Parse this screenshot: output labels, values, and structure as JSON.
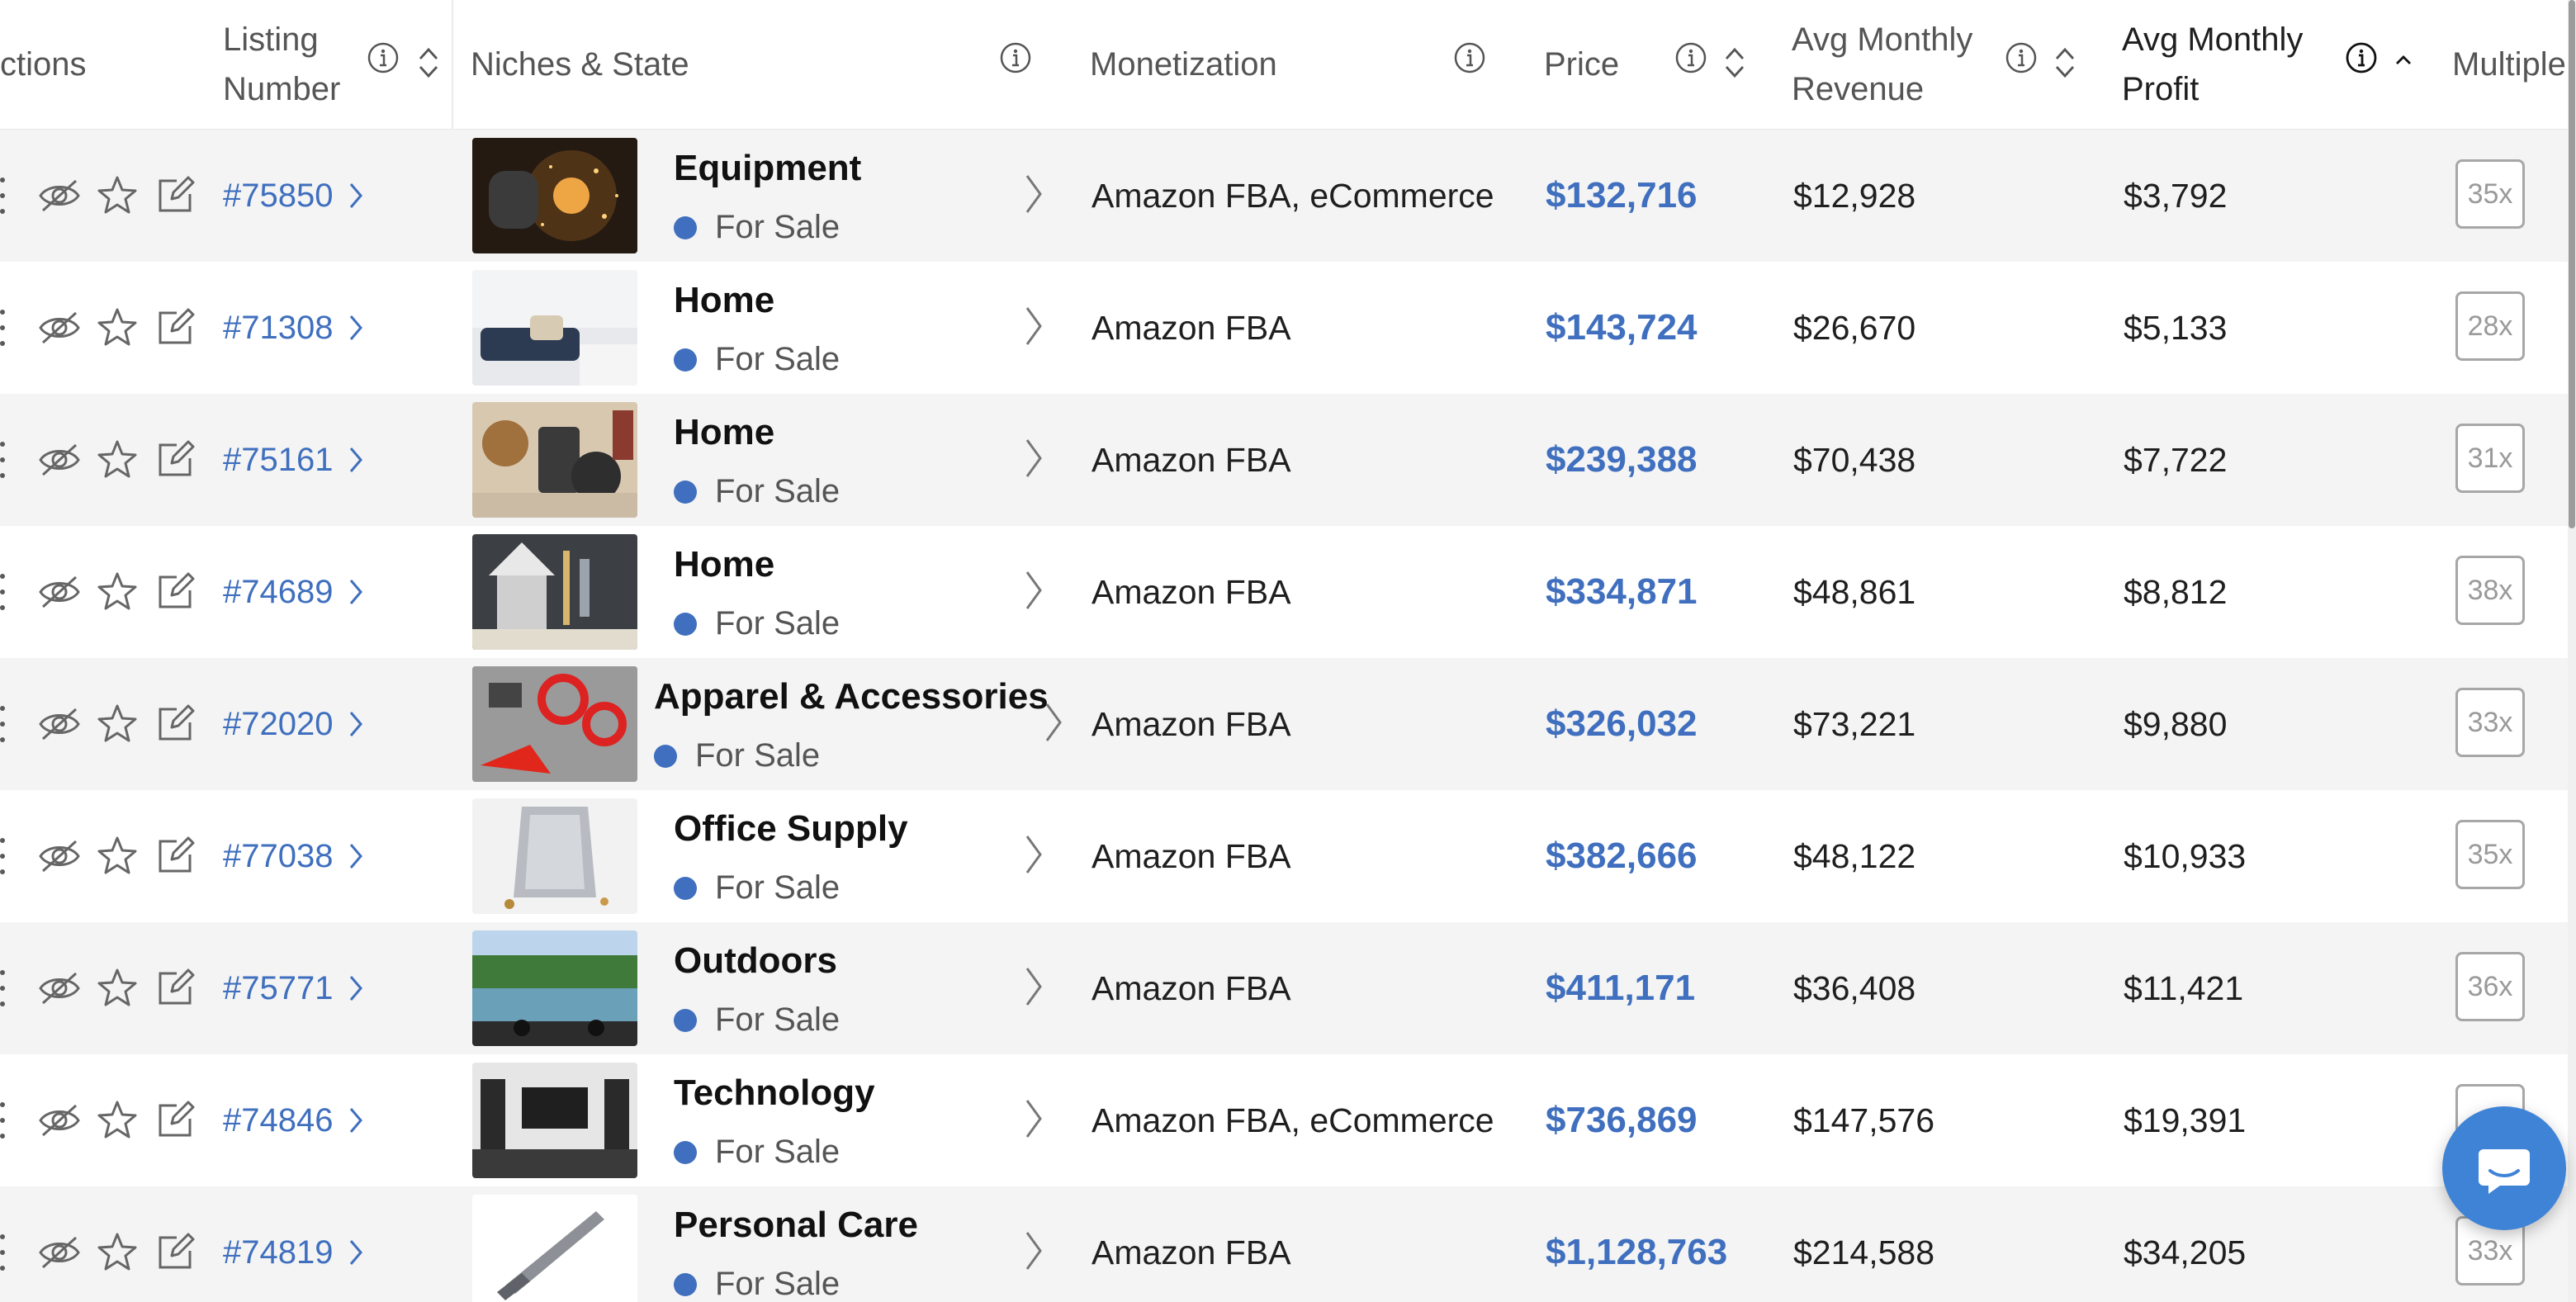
{
  "header": {
    "actions": "ctions",
    "listing_number": "Listing\nNumber",
    "niches_state": "Niches & State",
    "monetization": "Monetization",
    "price": "Price",
    "avg_monthly_revenue": "Avg Monthly\nRevenue",
    "avg_monthly_profit": "Avg Monthly\nProfit",
    "multiple": "Multiple"
  },
  "rows": [
    {
      "listing": "#75850",
      "niche": "Equipment",
      "state": "For Sale",
      "monetization": "Amazon FBA, eCommerce",
      "price": "$132,716",
      "revenue": "$12,928",
      "profit": "$3,792",
      "multiple": "35x"
    },
    {
      "listing": "#71308",
      "niche": "Home",
      "state": "For Sale",
      "monetization": "Amazon FBA",
      "price": "$143,724",
      "revenue": "$26,670",
      "profit": "$5,133",
      "multiple": "28x"
    },
    {
      "listing": "#75161",
      "niche": "Home",
      "state": "For Sale",
      "monetization": "Amazon FBA",
      "price": "$239,388",
      "revenue": "$70,438",
      "profit": "$7,722",
      "multiple": "31x"
    },
    {
      "listing": "#74689",
      "niche": "Home",
      "state": "For Sale",
      "monetization": "Amazon FBA",
      "price": "$334,871",
      "revenue": "$48,861",
      "profit": "$8,812",
      "multiple": "38x"
    },
    {
      "listing": "#72020",
      "niche": "Apparel & Accessories",
      "state": "For Sale",
      "monetization": "Amazon FBA",
      "price": "$326,032",
      "revenue": "$73,221",
      "profit": "$9,880",
      "multiple": "33x"
    },
    {
      "listing": "#77038",
      "niche": "Office Supply",
      "state": "For Sale",
      "monetization": "Amazon FBA",
      "price": "$382,666",
      "revenue": "$48,122",
      "profit": "$10,933",
      "multiple": "35x"
    },
    {
      "listing": "#75771",
      "niche": "Outdoors",
      "state": "For Sale",
      "monetization": "Amazon FBA",
      "price": "$411,171",
      "revenue": "$36,408",
      "profit": "$11,421",
      "multiple": "36x"
    },
    {
      "listing": "#74846",
      "niche": "Technology",
      "state": "For Sale",
      "monetization": "Amazon FBA, eCommerce",
      "price": "$736,869",
      "revenue": "$147,576",
      "profit": "$19,391",
      "multiple": ""
    },
    {
      "listing": "#74819",
      "niche": "Personal Care",
      "state": "For Sale",
      "monetization": "Amazon FBA",
      "price": "$1,128,763",
      "revenue": "$214,588",
      "profit": "$34,205",
      "multiple": "33x"
    }
  ],
  "colors": {
    "link": "#3f6fbe",
    "row_alt": "#f4f4f4",
    "state_dot": "#3f6fbe",
    "chat": "#3f83d6"
  },
  "icons": [
    "drag-handle-icon",
    "eye-slash-icon",
    "star-icon",
    "edit-icon",
    "chevron-right-icon",
    "info-icon",
    "sort-icon",
    "sort-up-icon",
    "chat-icon"
  ]
}
